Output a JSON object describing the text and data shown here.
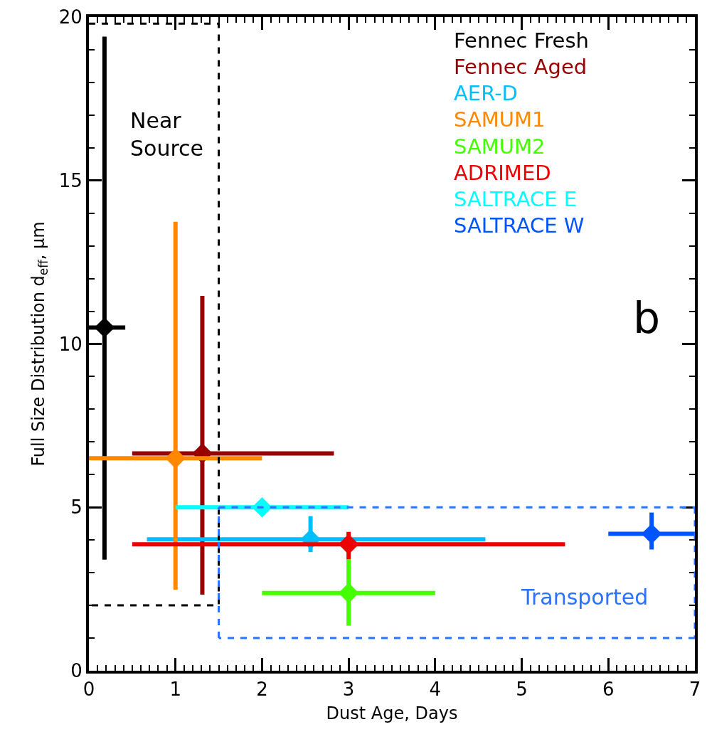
{
  "chart_data": {
    "type": "scatter",
    "xlabel": "Dust Age, Days",
    "ylabel": "Full Size Distribution d$_{eff}$, μm",
    "xlim": [
      0,
      7
    ],
    "ylim": [
      0,
      20
    ],
    "xticks": [
      0,
      1,
      2,
      3,
      4,
      5,
      6,
      7
    ],
    "yticks": [
      0,
      5,
      10,
      15,
      20
    ],
    "grid": false,
    "marker": "diamond",
    "legend": "top right",
    "series": [
      {
        "name": "Fennec Fresh",
        "color": "#000000",
        "x": [
          0.18
        ],
        "values": [
          10.5
        ],
        "errors": [
          [
            3.4,
            19.4
          ]
        ],
        "xerrors": [
          [
            0,
            0.42
          ]
        ]
      },
      {
        "name": "Fennec Aged",
        "color": "#990000",
        "x": [
          1.31
        ],
        "values": [
          6.65
        ],
        "errors": [
          [
            2.33,
            11.47
          ]
        ],
        "xerrors": [
          [
            0.5,
            2.83
          ]
        ]
      },
      {
        "name": "AER-D",
        "color": "#00bfff",
        "x": [
          2.56
        ],
        "values": [
          4.02
        ],
        "errors": [
          [
            3.63,
            4.73
          ]
        ],
        "xerrors": [
          [
            0.67,
            4.58
          ]
        ]
      },
      {
        "name": "SAMUM1",
        "color": "#ff8800",
        "x": [
          1.0
        ],
        "values": [
          6.5
        ],
        "errors": [
          [
            2.48,
            13.74
          ]
        ],
        "xerrors": [
          [
            0,
            2.0
          ]
        ]
      },
      {
        "name": "SAMUM2",
        "color": "#44ff00",
        "x": [
          3.0
        ],
        "values": [
          2.38
        ],
        "errors": [
          [
            1.38,
            3.41
          ]
        ],
        "xerrors": [
          [
            2.0,
            4.0
          ]
        ]
      },
      {
        "name": "ADRIMED",
        "color": "#ee0000",
        "x": [
          3.0
        ],
        "values": [
          3.87
        ],
        "errors": [
          [
            3.41,
            4.25
          ]
        ],
        "xerrors": [
          [
            0.5,
            5.5
          ]
        ]
      },
      {
        "name": "SALTRACE E",
        "color": "#00ffff",
        "x": [
          2.0
        ],
        "values": [
          5.0
        ],
        "errors": [
          null
        ],
        "xerrors": [
          [
            1.0,
            3.0
          ]
        ]
      },
      {
        "name": "SALTRACE W",
        "color": "#0055ff",
        "x": [
          6.5
        ],
        "values": [
          4.19
        ],
        "errors": [
          [
            3.71,
            4.84
          ]
        ],
        "xerrors": [
          [
            6.0,
            7.0
          ]
        ]
      },
      {
        "type": "line",
        "color": "#000000",
        "line_style": "dashed",
        "marker": "none",
        "x": [
          0,
          1.5,
          1.5,
          0
        ],
        "values": [
          19.8,
          19.8,
          2,
          2
        ]
      },
      {
        "type": "line",
        "color": "#2a72ff",
        "line_style": "dashed",
        "marker": "none",
        "x": [
          1.5,
          7
        ],
        "values": [
          5,
          5
        ]
      },
      {
        "type": "line",
        "color": "#2a72ff",
        "line_style": "dashed",
        "marker": "none",
        "x": [
          7,
          7
        ],
        "values": [
          5,
          1
        ]
      },
      {
        "type": "line",
        "color": "#2a72ff",
        "line_style": "dashed",
        "marker": "none",
        "x": [
          7,
          1.5
        ],
        "values": [
          1,
          1
        ]
      },
      {
        "type": "line",
        "color": "#2a72ff",
        "line_style": "dashed",
        "marker": "none",
        "x": [
          1.5,
          1.5
        ],
        "values": [
          1,
          5
        ]
      }
    ],
    "annotations": [
      "Near\nSource",
      "Transported",
      "b"
    ]
  }
}
